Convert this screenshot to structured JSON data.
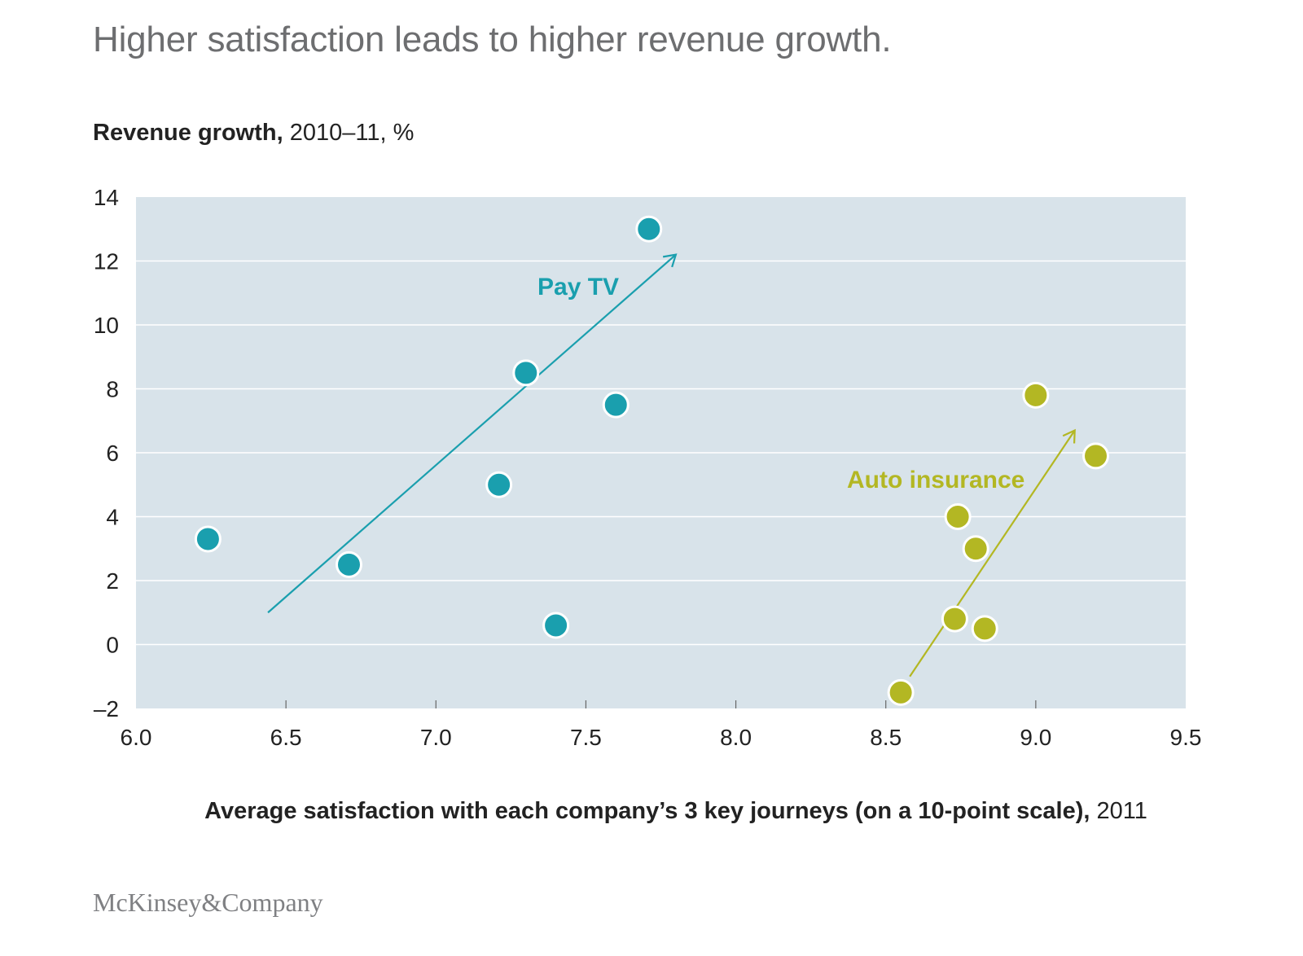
{
  "header": {
    "title": "Higher satisfaction leads to higher revenue growth."
  },
  "brand": "McKinsey&Company",
  "chart_data": {
    "type": "scatter",
    "title": "Higher satisfaction leads to higher revenue growth.",
    "ylabel_bold": "Revenue growth,",
    "ylabel_rest": " 2010–11, %",
    "xlabel_bold": "Average satisfaction with each company’s 3 key journeys (on a 10-point scale),",
    "xlabel_rest": " 2011",
    "xlim": [
      6.0,
      9.5
    ],
    "ylim": [
      -2,
      14
    ],
    "xticks": [
      "6.0",
      "6.5",
      "7.0",
      "7.5",
      "8.0",
      "8.5",
      "9.0",
      "9.5"
    ],
    "yticks": [
      "14",
      "12",
      "10",
      "8",
      "6",
      "4",
      "2",
      "0",
      "–2"
    ],
    "grid": true,
    "series": [
      {
        "name": "Pay TV",
        "color": "#1a9fae",
        "points": [
          [
            6.24,
            3.3
          ],
          [
            6.71,
            2.5
          ],
          [
            7.21,
            5.0
          ],
          [
            7.3,
            8.5
          ],
          [
            7.4,
            0.6
          ],
          [
            7.6,
            7.5
          ],
          [
            7.71,
            13.0
          ]
        ],
        "trend": [
          [
            6.44,
            1.0
          ],
          [
            7.8,
            12.2
          ]
        ]
      },
      {
        "name": "Auto insurance",
        "color": "#b3b723",
        "points": [
          [
            8.55,
            -1.5
          ],
          [
            8.73,
            0.8
          ],
          [
            8.74,
            4.0
          ],
          [
            8.8,
            3.0
          ],
          [
            8.83,
            0.5
          ],
          [
            9.0,
            7.8
          ],
          [
            9.2,
            5.9
          ]
        ],
        "trend": [
          [
            8.58,
            -1.0
          ],
          [
            9.13,
            6.7
          ]
        ]
      }
    ]
  }
}
